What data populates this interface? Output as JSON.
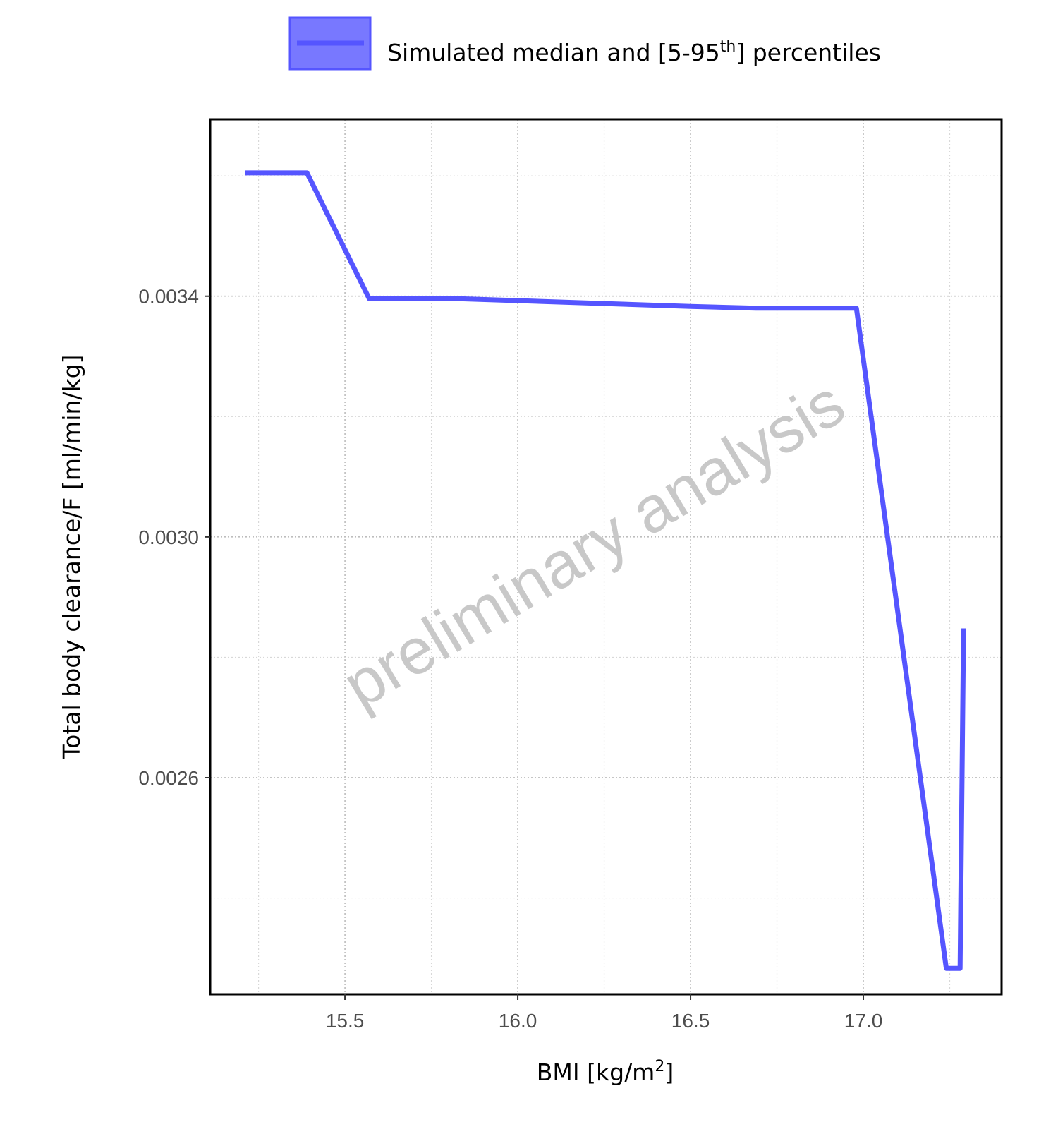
{
  "chart_data": {
    "type": "line",
    "legend": {
      "label_main": "Simulated median and [5-95",
      "label_sup": "th",
      "label_end": "] percentiles",
      "placement": "top"
    },
    "xlabel_main": "BMI [kg/m",
    "xlabel_sup": "2",
    "xlabel_end": "]",
    "ylabel": "Total body clearance/F [ml/min/kg]",
    "xlim": [
      15.11,
      17.4
    ],
    "ylim": [
      0.00224,
      0.003694
    ],
    "x_ticks": [
      15.5,
      16.0,
      16.5,
      17.0
    ],
    "x_tick_labels": [
      "15.5",
      "16.0",
      "16.5",
      "17.0"
    ],
    "x_minor_ticks": [
      15.25,
      15.75,
      16.25,
      16.75,
      17.25
    ],
    "y_ticks": [
      0.0026,
      0.003,
      0.0034
    ],
    "y_tick_labels": [
      "0.0026",
      "0.0030",
      "0.0034"
    ],
    "y_minor_ticks": [
      0.0024,
      0.0028,
      0.0032,
      0.0036
    ],
    "grid": true,
    "watermark": "preliminary analysis",
    "series": [
      {
        "color": "#5555ff",
        "x": [
          15.21,
          15.39,
          15.57,
          15.82,
          16.5,
          16.69,
          16.98,
          17.24,
          17.28,
          17.29
        ],
        "y": [
          0.003605,
          0.003605,
          0.003396,
          0.003396,
          0.003383,
          0.00338,
          0.00338,
          0.002283,
          0.002283,
          0.002848
        ]
      }
    ]
  }
}
